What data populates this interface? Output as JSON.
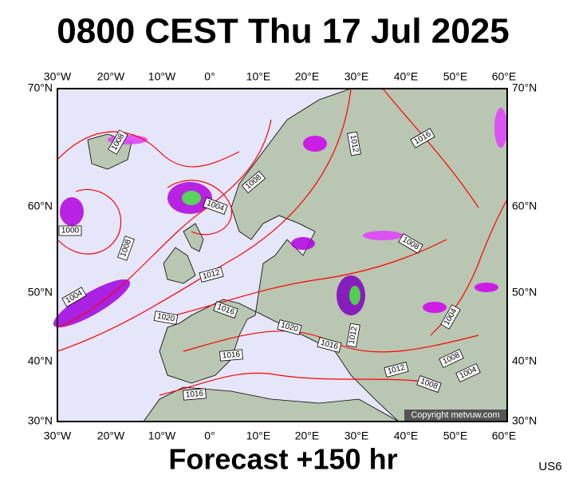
{
  "header": {
    "title": "0800 CEST Thu 17 Jul 2025"
  },
  "map": {
    "lon_labels": [
      "30°W",
      "20°W",
      "10°W",
      "0°",
      "10°E",
      "20°E",
      "30°E",
      "40°E",
      "50°E",
      "60°E"
    ],
    "lat_labels": [
      "70°N",
      "60°N",
      "50°N",
      "40°N",
      "30°N"
    ],
    "isobar_labels": [
      "1008",
      "1008",
      "1012",
      "1016",
      "1004",
      "1000",
      "1008",
      "1008",
      "1012",
      "1004",
      "1016",
      "1020",
      "1004",
      "1020",
      "1016",
      "1012",
      "1016",
      "1008",
      "1004",
      "1012",
      "1008",
      "1016"
    ],
    "copyright": "Copyright metvuw.com"
  },
  "footer": {
    "forecast": "Forecast +150 hr",
    "code": "US6"
  }
}
